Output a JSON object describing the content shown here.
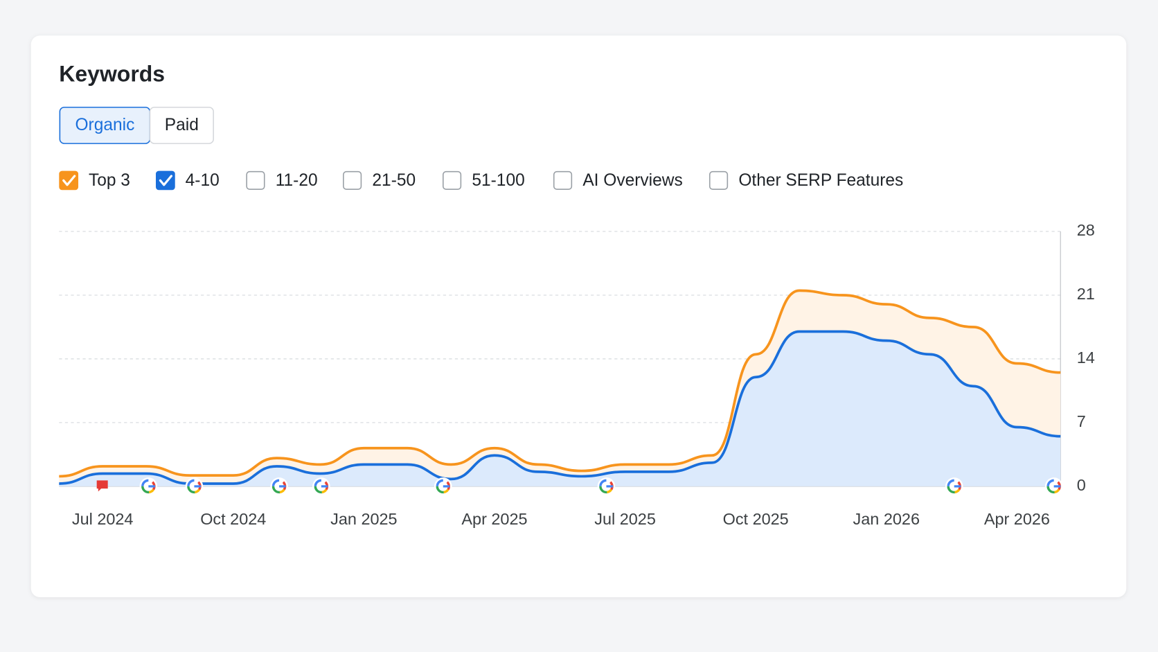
{
  "header": {
    "title": "Keywords"
  },
  "tabs": [
    {
      "label": "Organic",
      "active": true
    },
    {
      "label": "Paid",
      "active": false
    }
  ],
  "filters": [
    "11-20",
    "21-50",
    "51-100",
    "AI Overviews",
    "Other SERP Features"
  ],
  "chart_data": {
    "type": "area",
    "stacked": true,
    "categories": [
      null,
      "Jul 2024",
      null,
      null,
      "Oct 2024",
      null,
      null,
      "Jan 2025",
      null,
      null,
      "Apr 2025",
      null,
      null,
      "Jul 2025",
      null,
      null,
      "Oct 2025",
      null,
      null,
      "Jan 2026",
      null,
      null,
      "Apr 2026",
      null
    ],
    "series": [
      {
        "name": "Top 3",
        "color": "#f7941d",
        "values": [
          0.8,
          0.8,
          0.8,
          0.9,
          0.9,
          0.9,
          1.0,
          1.8,
          1.8,
          1.6,
          0.8,
          0.8,
          0.6,
          0.8,
          0.8,
          0.8,
          2.5,
          4.5,
          4.0,
          4.0,
          4.0,
          6.5,
          7.0,
          7.0
        ]
      },
      {
        "name": "4-10",
        "color": "#1a6fdb",
        "values": [
          0.3,
          1.4,
          1.4,
          0.3,
          0.3,
          2.2,
          1.4,
          2.4,
          2.4,
          0.8,
          3.4,
          1.6,
          1.1,
          1.6,
          1.6,
          2.6,
          12,
          17,
          17,
          16,
          14.5,
          11,
          6.5,
          5.5
        ]
      }
    ],
    "ylim": [
      0,
      28
    ],
    "yticks": [
      0,
      7,
      14,
      21,
      28
    ],
    "grid": true
  }
}
